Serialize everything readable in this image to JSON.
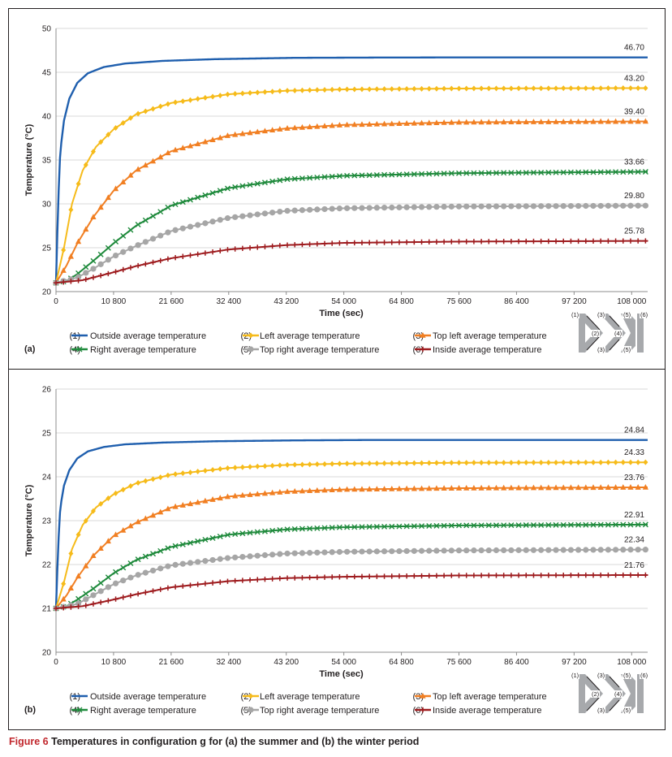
{
  "caption": {
    "figure": "Figure 6",
    "text": "Temperatures in configuration g for (a) the summer and (b) the winter period"
  },
  "legend": [
    {
      "num": "(1)",
      "label": "Outside average temperature",
      "color": "#1f5fae",
      "marker": "none"
    },
    {
      "num": "(2)",
      "label": "Left average temperature",
      "color": "#f6bb1a",
      "marker": "diamond"
    },
    {
      "num": "(3)",
      "label": "Top left average temperature",
      "color": "#f17f22",
      "marker": "triangle"
    },
    {
      "num": "(4)",
      "label": "Right average temperature",
      "color": "#1f8a3c",
      "marker": "x"
    },
    {
      "num": "(5)",
      "label": "Top right average temperature",
      "color": "#a6a6a6",
      "marker": "circle"
    },
    {
      "num": "(6)",
      "label": "Inside average temperature",
      "color": "#9e1b1e",
      "marker": "plus"
    }
  ],
  "diagram": {
    "labels": [
      "(1)",
      "(2)",
      "(3)",
      "(3)",
      "(4)",
      "(5)",
      "(5)",
      "(6)"
    ]
  },
  "chart_data": [
    {
      "panel": "(a)",
      "type": "line",
      "xlabel": "Time (sec)",
      "ylabel": "Temperature (°C)",
      "xlim": [
        0,
        111000
      ],
      "ylim": [
        20,
        50
      ],
      "xticks": [
        0,
        10800,
        21600,
        32400,
        43200,
        54000,
        64800,
        75600,
        86400,
        97200,
        108000
      ],
      "xtick_labels": [
        "0",
        "10 800",
        "21 600",
        "32 400",
        "43 200",
        "54 000",
        "64 800",
        "75 600",
        "86 400",
        "97 200",
        "108 000"
      ],
      "yticks": [
        20,
        25,
        30,
        35,
        40,
        45,
        50
      ],
      "ytick_labels": [
        "20",
        "25",
        "30",
        "35",
        "40",
        "45",
        "50"
      ],
      "series": [
        {
          "name": "Outside average temperature",
          "start": 21,
          "final": 46.7,
          "end_label": "46.70",
          "points": [
            [
              0,
              21
            ],
            [
              400,
              30
            ],
            [
              800,
              36
            ],
            [
              1500,
              39.5
            ],
            [
              2500,
              42
            ],
            [
              4000,
              43.8
            ],
            [
              6000,
              44.9
            ],
            [
              9000,
              45.6
            ],
            [
              13000,
              46.0
            ],
            [
              20000,
              46.3
            ],
            [
              30000,
              46.5
            ],
            [
              45000,
              46.65
            ],
            [
              60000,
              46.68
            ],
            [
              80000,
              46.7
            ],
            [
              111000,
              46.7
            ]
          ]
        },
        {
          "name": "Left average temperature",
          "start": 21,
          "final": 43.2,
          "end_label": "43.20",
          "points": [
            [
              0,
              21
            ],
            [
              1500,
              25
            ],
            [
              3000,
              30
            ],
            [
              5000,
              33.8
            ],
            [
              7500,
              36.5
            ],
            [
              10800,
              38.5
            ],
            [
              15000,
              40.2
            ],
            [
              21600,
              41.5
            ],
            [
              32400,
              42.5
            ],
            [
              43200,
              42.9
            ],
            [
              54000,
              43.05
            ],
            [
              75600,
              43.15
            ],
            [
              111000,
              43.2
            ]
          ]
        },
        {
          "name": "Top left average temperature",
          "start": 21,
          "final": 39.4,
          "end_label": "39.40",
          "points": [
            [
              0,
              21
            ],
            [
              2000,
              23
            ],
            [
              4000,
              25.5
            ],
            [
              7000,
              28.5
            ],
            [
              10800,
              31.5
            ],
            [
              15000,
              33.8
            ],
            [
              21600,
              36
            ],
            [
              32400,
              37.8
            ],
            [
              43200,
              38.6
            ],
            [
              54000,
              39.0
            ],
            [
              75600,
              39.3
            ],
            [
              111000,
              39.4
            ]
          ]
        },
        {
          "name": "Right average temperature",
          "start": 21,
          "final": 33.66,
          "end_label": "33.66",
          "points": [
            [
              0,
              21
            ],
            [
              2000,
              21.2
            ],
            [
              4000,
              22
            ],
            [
              7000,
              23.5
            ],
            [
              10800,
              25.5
            ],
            [
              15000,
              27.5
            ],
            [
              21600,
              29.8
            ],
            [
              32400,
              31.8
            ],
            [
              43200,
              32.8
            ],
            [
              54000,
              33.2
            ],
            [
              75600,
              33.5
            ],
            [
              111000,
              33.66
            ]
          ]
        },
        {
          "name": "Top right average temperature",
          "start": 21,
          "final": 29.8,
          "end_label": "29.80",
          "points": [
            [
              0,
              21
            ],
            [
              4000,
              21.6
            ],
            [
              7000,
              22.6
            ],
            [
              10800,
              24
            ],
            [
              15000,
              25.2
            ],
            [
              21600,
              26.9
            ],
            [
              32400,
              28.4
            ],
            [
              43200,
              29.2
            ],
            [
              54000,
              29.5
            ],
            [
              75600,
              29.7
            ],
            [
              111000,
              29.8
            ]
          ]
        },
        {
          "name": "Inside average temperature",
          "start": 21,
          "final": 25.78,
          "end_label": "25.78",
          "points": [
            [
              0,
              21
            ],
            [
              5000,
              21.3
            ],
            [
              10800,
              22.2
            ],
            [
              15000,
              22.9
            ],
            [
              21600,
              23.8
            ],
            [
              32400,
              24.8
            ],
            [
              43200,
              25.3
            ],
            [
              54000,
              25.55
            ],
            [
              75600,
              25.7
            ],
            [
              111000,
              25.78
            ]
          ]
        }
      ]
    },
    {
      "panel": "(b)",
      "type": "line",
      "xlabel": "Time (sec)",
      "ylabel": "Temperature (°C)",
      "xlim": [
        0,
        111000
      ],
      "ylim": [
        20,
        26
      ],
      "xticks": [
        0,
        10800,
        21600,
        32400,
        43200,
        54000,
        64800,
        75600,
        86400,
        97200,
        108000
      ],
      "xtick_labels": [
        "0",
        "10 800",
        "21 600",
        "32 400",
        "43 200",
        "54 000",
        "64 800",
        "75 600",
        "86 400",
        "97 200",
        "108 000"
      ],
      "yticks": [
        20,
        21,
        22,
        23,
        24,
        25,
        26
      ],
      "ytick_labels": [
        "20",
        "21",
        "22",
        "23",
        "24",
        "25",
        "26"
      ],
      "series": [
        {
          "name": "Outside average temperature",
          "start": 21,
          "final": 24.84,
          "end_label": "24.84",
          "points": [
            [
              0,
              21
            ],
            [
              400,
              22.4
            ],
            [
              800,
              23.3
            ],
            [
              1500,
              23.8
            ],
            [
              2500,
              24.15
            ],
            [
              4000,
              24.42
            ],
            [
              6000,
              24.58
            ],
            [
              9000,
              24.68
            ],
            [
              13000,
              24.74
            ],
            [
              20000,
              24.78
            ],
            [
              30000,
              24.81
            ],
            [
              45000,
              24.83
            ],
            [
              60000,
              24.84
            ],
            [
              111000,
              24.84
            ]
          ]
        },
        {
          "name": "Left average temperature",
          "start": 21,
          "final": 24.33,
          "end_label": "24.33",
          "points": [
            [
              0,
              21
            ],
            [
              1500,
              21.6
            ],
            [
              3000,
              22.35
            ],
            [
              5000,
              22.9
            ],
            [
              7500,
              23.3
            ],
            [
              10800,
              23.6
            ],
            [
              15000,
              23.85
            ],
            [
              21600,
              24.05
            ],
            [
              32400,
              24.2
            ],
            [
              43200,
              24.27
            ],
            [
              54000,
              24.3
            ],
            [
              75600,
              24.32
            ],
            [
              111000,
              24.33
            ]
          ]
        },
        {
          "name": "Top left average temperature",
          "start": 21,
          "final": 23.76,
          "end_label": "23.76",
          "points": [
            [
              0,
              21
            ],
            [
              2000,
              21.3
            ],
            [
              4000,
              21.7
            ],
            [
              7000,
              22.2
            ],
            [
              10800,
              22.65
            ],
            [
              15000,
              22.95
            ],
            [
              21600,
              23.3
            ],
            [
              32400,
              23.55
            ],
            [
              43200,
              23.66
            ],
            [
              54000,
              23.71
            ],
            [
              75600,
              23.74
            ],
            [
              111000,
              23.76
            ]
          ]
        },
        {
          "name": "Right average temperature",
          "start": 21,
          "final": 22.91,
          "end_label": "22.91",
          "points": [
            [
              0,
              21
            ],
            [
              2000,
              21.05
            ],
            [
              4000,
              21.2
            ],
            [
              7000,
              21.45
            ],
            [
              10800,
              21.8
            ],
            [
              15000,
              22.1
            ],
            [
              21600,
              22.4
            ],
            [
              32400,
              22.68
            ],
            [
              43200,
              22.8
            ],
            [
              54000,
              22.85
            ],
            [
              75600,
              22.89
            ],
            [
              111000,
              22.91
            ]
          ]
        },
        {
          "name": "Top right average temperature",
          "start": 21,
          "final": 22.34,
          "end_label": "22.34",
          "points": [
            [
              0,
              21
            ],
            [
              4000,
              21.1
            ],
            [
              7000,
              21.3
            ],
            [
              10800,
              21.55
            ],
            [
              15000,
              21.75
            ],
            [
              21600,
              21.98
            ],
            [
              32400,
              22.15
            ],
            [
              43200,
              22.25
            ],
            [
              54000,
              22.29
            ],
            [
              75600,
              22.32
            ],
            [
              111000,
              22.34
            ]
          ]
        },
        {
          "name": "Inside average temperature",
          "start": 21,
          "final": 21.76,
          "end_label": "21.76",
          "points": [
            [
              0,
              21
            ],
            [
              5000,
              21.05
            ],
            [
              10800,
              21.2
            ],
            [
              15000,
              21.32
            ],
            [
              21600,
              21.48
            ],
            [
              32400,
              21.62
            ],
            [
              43200,
              21.69
            ],
            [
              54000,
              21.72
            ],
            [
              75600,
              21.75
            ],
            [
              111000,
              21.76
            ]
          ]
        }
      ]
    }
  ]
}
